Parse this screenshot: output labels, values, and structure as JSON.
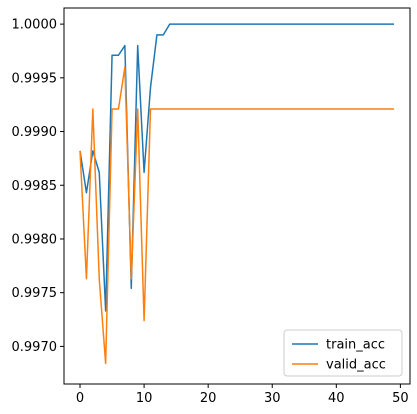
{
  "chart_data": {
    "type": "line",
    "title": "",
    "xlabel": "",
    "ylabel": "",
    "xlim": [
      -2.5,
      51.5
    ],
    "ylim": [
      0.99665,
      1.00015
    ],
    "xticks": [
      0,
      10,
      20,
      30,
      40,
      50
    ],
    "yticks": [
      0.997,
      0.9975,
      0.998,
      0.9985,
      0.999,
      0.9995,
      1.0
    ],
    "ytick_labels": [
      "0.9970",
      "0.9975",
      "0.9980",
      "0.9985",
      "0.9990",
      "0.9995",
      "1.0000"
    ],
    "grid": false,
    "legend": "lower-right",
    "series": [
      {
        "name": "train_acc",
        "color": "#1f77b4",
        "x": [
          0,
          1,
          2,
          3,
          4,
          5,
          6,
          7,
          8,
          9,
          10,
          11,
          12,
          13,
          14,
          15,
          16,
          17,
          18,
          19,
          20,
          21,
          22,
          23,
          24,
          25,
          26,
          27,
          28,
          29,
          30,
          31,
          32,
          33,
          34,
          35,
          36,
          37,
          38,
          39,
          40,
          41,
          42,
          43,
          44,
          45,
          46,
          47,
          48,
          49
        ],
        "y": [
          0.99882,
          0.99843,
          0.99882,
          0.99862,
          0.99733,
          0.99971,
          0.99971,
          0.9998,
          0.99754,
          0.9998,
          0.99862,
          0.99941,
          0.9999,
          0.9999,
          1.0,
          1.0,
          1.0,
          1.0,
          1.0,
          1.0,
          1.0,
          1.0,
          1.0,
          1.0,
          1.0,
          1.0,
          1.0,
          1.0,
          1.0,
          1.0,
          1.0,
          1.0,
          1.0,
          1.0,
          1.0,
          1.0,
          1.0,
          1.0,
          1.0,
          1.0,
          1.0,
          1.0,
          1.0,
          1.0,
          1.0,
          1.0,
          1.0,
          1.0,
          1.0,
          1.0
        ]
      },
      {
        "name": "valid_acc",
        "color": "#ff7f0e",
        "x": [
          0,
          1,
          2,
          3,
          4,
          5,
          6,
          7,
          8,
          9,
          10,
          11,
          12,
          13,
          14,
          15,
          16,
          17,
          18,
          19,
          20,
          21,
          22,
          23,
          24,
          25,
          26,
          27,
          28,
          29,
          30,
          31,
          32,
          33,
          34,
          35,
          36,
          37,
          38,
          39,
          40,
          41,
          42,
          43,
          44,
          45,
          46,
          47,
          48,
          49
        ],
        "y": [
          0.99882,
          0.99763,
          0.99921,
          0.99763,
          0.99684,
          0.99921,
          0.99921,
          0.9996,
          0.99763,
          0.99921,
          0.99724,
          0.99921,
          0.99921,
          0.99921,
          0.99921,
          0.99921,
          0.99921,
          0.99921,
          0.99921,
          0.99921,
          0.99921,
          0.99921,
          0.99921,
          0.99921,
          0.99921,
          0.99921,
          0.99921,
          0.99921,
          0.99921,
          0.99921,
          0.99921,
          0.99921,
          0.99921,
          0.99921,
          0.99921,
          0.99921,
          0.99921,
          0.99921,
          0.99921,
          0.99921,
          0.99921,
          0.99921,
          0.99921,
          0.99921,
          0.99921,
          0.99921,
          0.99921,
          0.99921,
          0.99921,
          0.99921
        ]
      }
    ]
  }
}
